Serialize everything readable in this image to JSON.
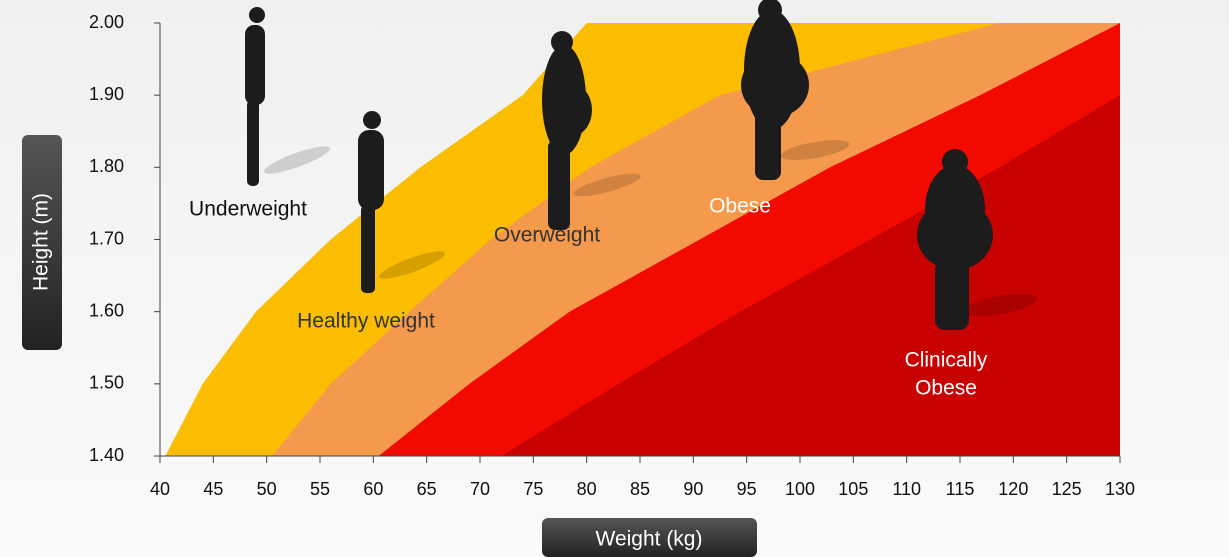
{
  "chart_data": {
    "type": "area",
    "xlabel": "Weight (kg)",
    "ylabel": "Height (m)",
    "xlim": [
      40,
      130
    ],
    "ylim": [
      1.4,
      2.0
    ],
    "xticks": [
      40,
      45,
      50,
      55,
      60,
      65,
      70,
      75,
      80,
      85,
      90,
      95,
      100,
      105,
      110,
      115,
      120,
      125,
      130
    ],
    "yticks": [
      {
        "value": 1.4,
        "label": "1.40"
      },
      {
        "value": 1.5,
        "label": "1.50"
      },
      {
        "value": 1.6,
        "label": "1.60"
      },
      {
        "value": 1.7,
        "label": "1.70"
      },
      {
        "value": 1.8,
        "label": "1.80"
      },
      {
        "value": 1.9,
        "label": "1.90"
      },
      {
        "value": 2.0,
        "label": "2.00"
      }
    ],
    "series": [
      {
        "color": "#fbbd00",
        "x": [
          40.5,
          44,
          49,
          56,
          64.4,
          74,
          80
        ],
        "y": [
          1.4,
          1.5,
          1.6,
          1.7,
          1.8,
          1.9,
          2.0
        ]
      },
      {
        "color": "#f59a4c",
        "x": [
          50.5,
          56,
          63.4,
          71,
          80.3,
          92.5,
          118.7
        ],
        "y": [
          1.4,
          1.5,
          1.6,
          1.7,
          1.8,
          1.9,
          2.0
        ]
      },
      {
        "color": "#f20a00",
        "x": [
          60.5,
          69,
          78.4,
          90.6,
          102.8,
          116.9,
          130
        ],
        "y": [
          1.4,
          1.5,
          1.6,
          1.7,
          1.8,
          1.9,
          2.0
        ]
      },
      {
        "color": "#c80000",
        "x": [
          72,
          83,
          94.4,
          106.6,
          118.7,
          130
        ],
        "y": [
          1.4,
          1.5,
          1.6,
          1.7,
          1.8,
          1.9
        ]
      }
    ],
    "annotations": [
      "Underweight",
      "Healthy weight",
      "Overweight",
      "Obese",
      [
        "Clinically",
        "Obese"
      ]
    ]
  }
}
